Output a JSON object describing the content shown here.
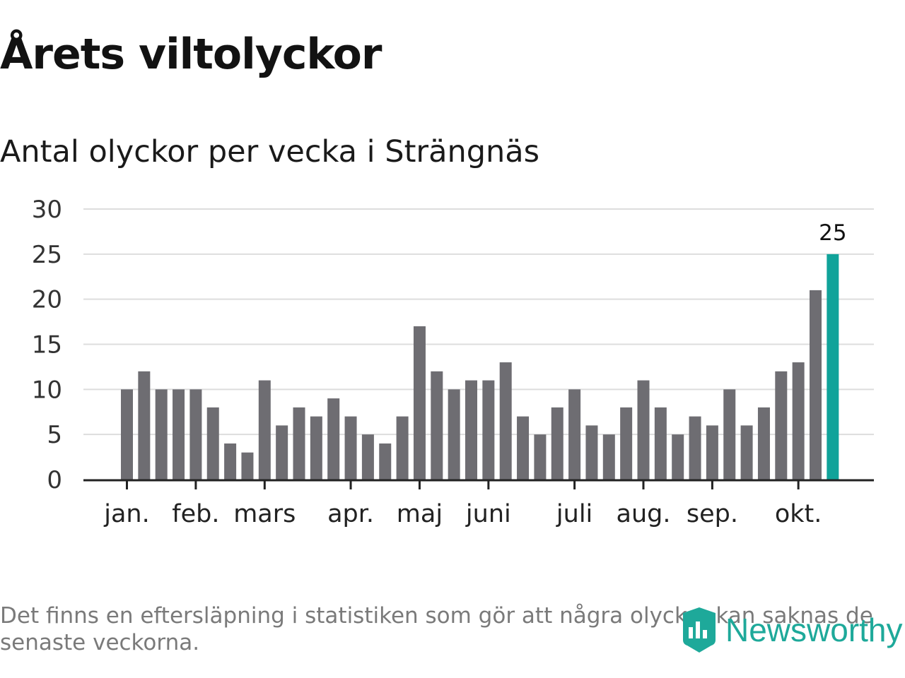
{
  "title": "Årets viltolyckor",
  "subtitle": "Antal olyckor per vecka i Strängnäs",
  "footnote": "Det finns en eftersläpning i statistiken som gör att några olyckor kan saknas de senaste veckorna.",
  "logo_text": "Newsworthy",
  "icons": {
    "logo": "newsworthy-logo-icon"
  },
  "colors": {
    "bar": "#6e6d72",
    "highlight": "#10a39a",
    "grid": "#dddddd",
    "axis": "#222222",
    "logo": "#1ea99a"
  },
  "chart_data": {
    "type": "bar",
    "title": "Årets viltolyckor",
    "subtitle": "Antal olyckor per vecka i Strängnäs",
    "xlabel": "",
    "ylabel": "",
    "ylim": [
      0,
      30
    ],
    "yticks": [
      0,
      5,
      10,
      15,
      20,
      25,
      30
    ],
    "grid": true,
    "values": [
      10,
      12,
      10,
      10,
      10,
      8,
      4,
      3,
      11,
      6,
      8,
      7,
      9,
      7,
      5,
      4,
      7,
      17,
      12,
      10,
      11,
      11,
      13,
      7,
      5,
      8,
      10,
      6,
      5,
      8,
      11,
      8,
      5,
      7,
      6,
      10,
      6,
      8,
      12,
      13,
      21,
      25
    ],
    "highlight_index": 41,
    "value_labels": [
      {
        "index": 41,
        "text": "25"
      }
    ],
    "month_labels": [
      {
        "label": "jan.",
        "bar_index": 0
      },
      {
        "label": "feb.",
        "bar_index": 4
      },
      {
        "label": "mars",
        "bar_index": 8
      },
      {
        "label": "apr.",
        "bar_index": 13
      },
      {
        "label": "maj",
        "bar_index": 17
      },
      {
        "label": "juni",
        "bar_index": 21
      },
      {
        "label": "juli",
        "bar_index": 26
      },
      {
        "label": "aug.",
        "bar_index": 30
      },
      {
        "label": "sep.",
        "bar_index": 34
      },
      {
        "label": "okt.",
        "bar_index": 39
      }
    ]
  }
}
